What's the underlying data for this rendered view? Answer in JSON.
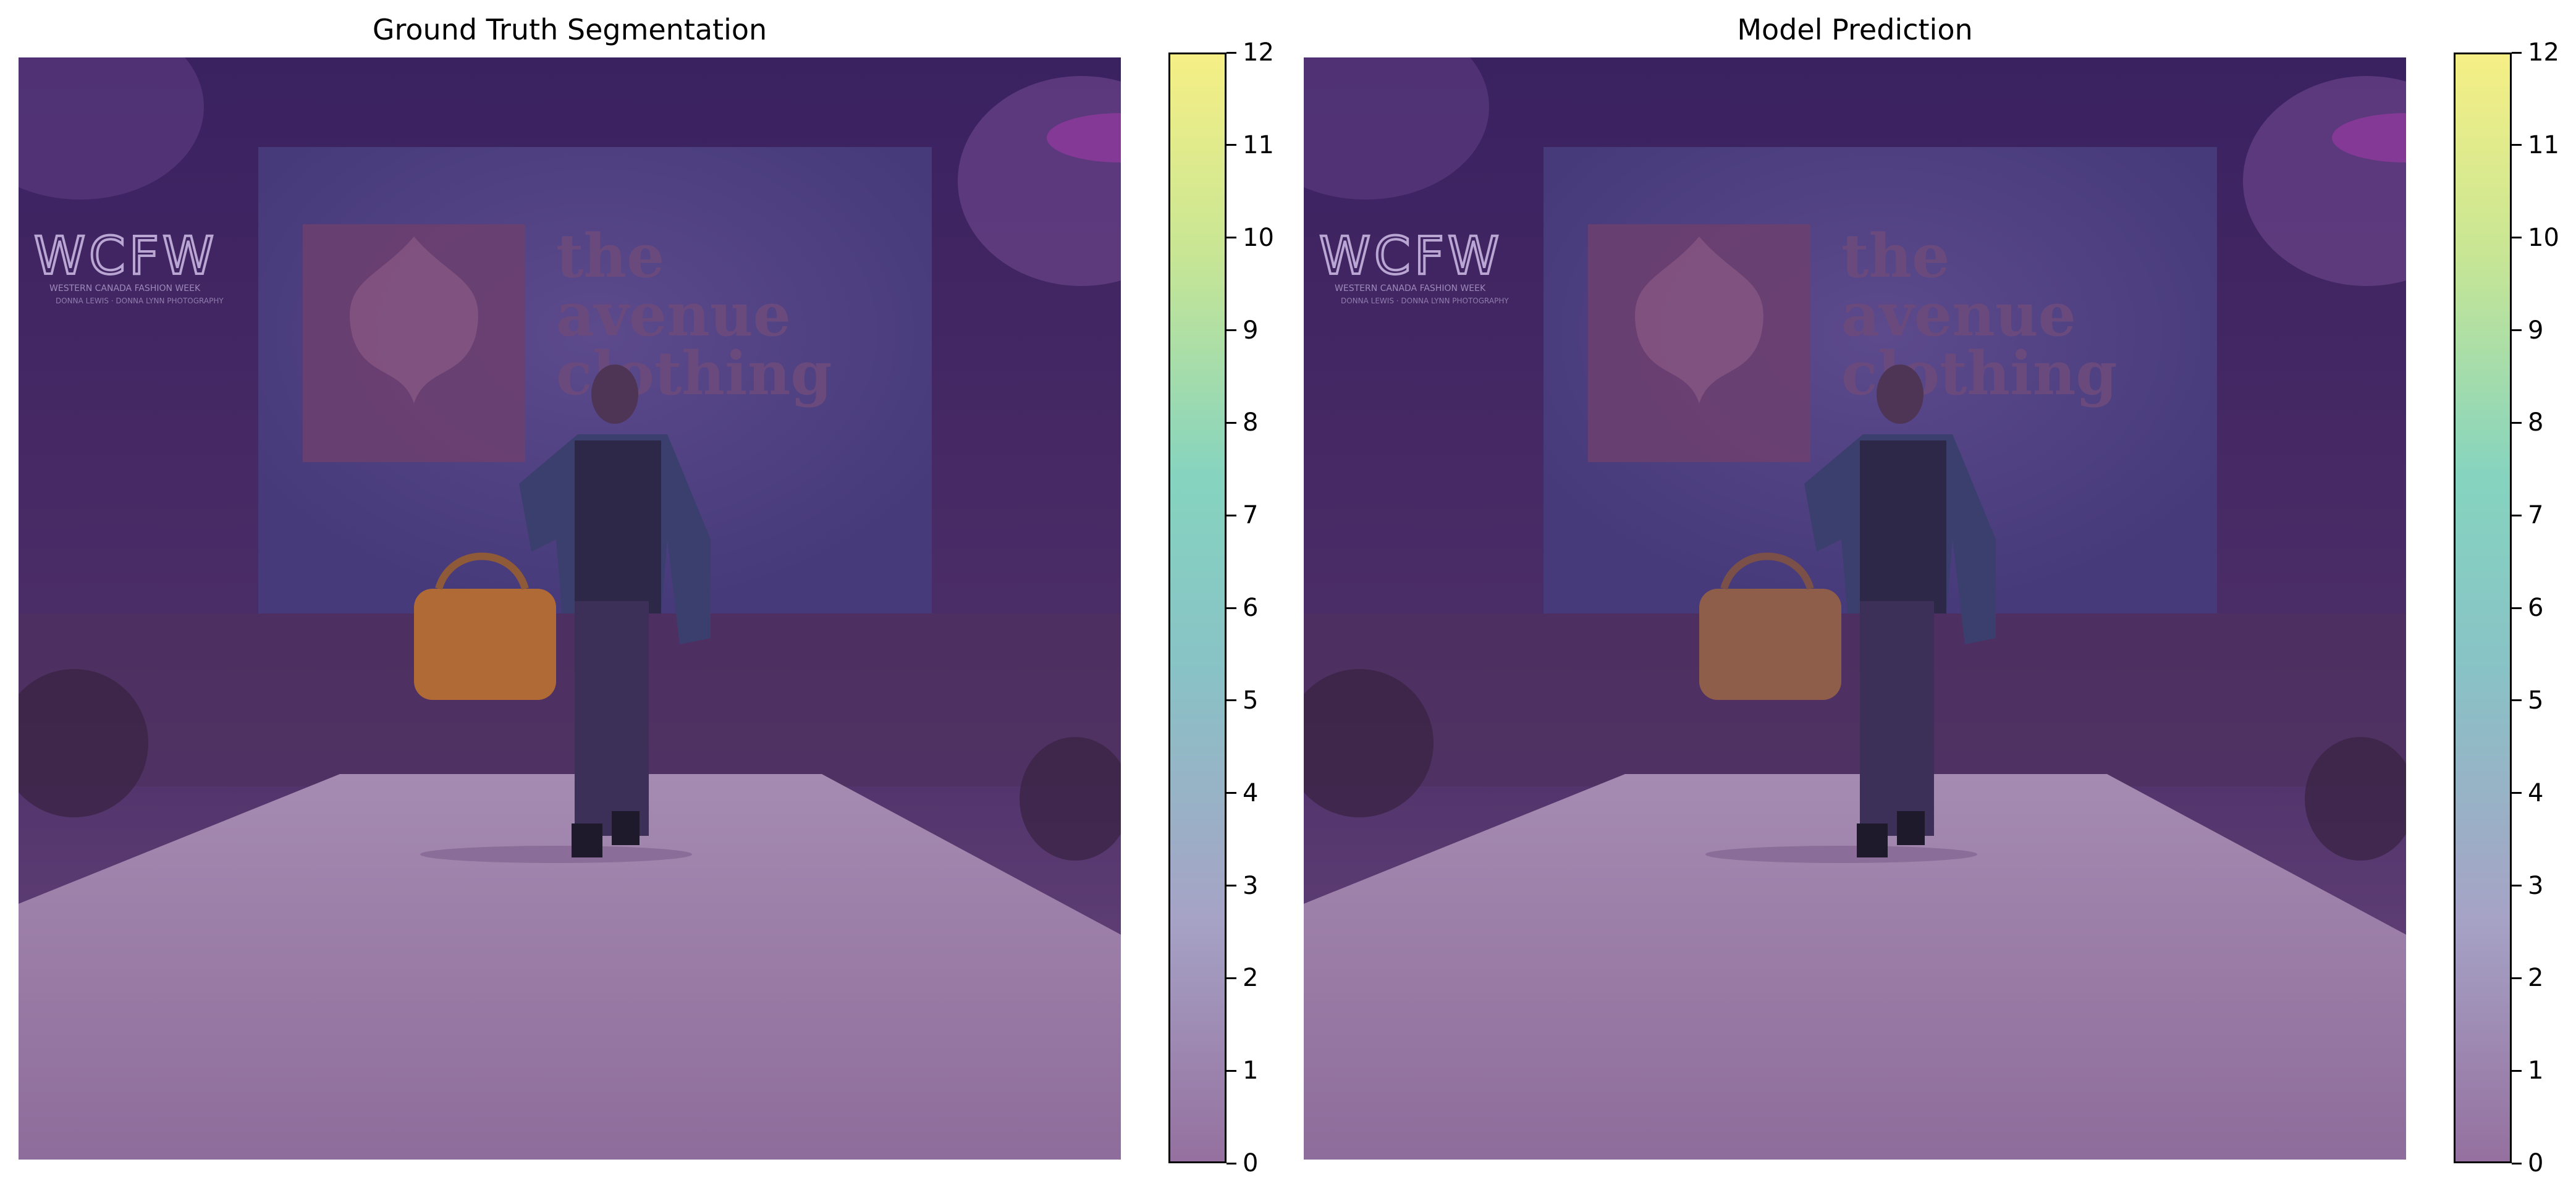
{
  "figure": {
    "panels": [
      {
        "title": "Ground Truth Segmentation",
        "overlay_color": "#5b2a73",
        "colorbar": {
          "min": 0,
          "max": 12,
          "ticks": [
            "0",
            "1",
            "2",
            "3",
            "4",
            "5",
            "6",
            "7",
            "8",
            "9",
            "10",
            "11",
            "12"
          ]
        }
      },
      {
        "title": "Model Prediction",
        "overlay_color": "#5b2a73",
        "colorbar": {
          "min": 0,
          "max": 12,
          "ticks": [
            "0",
            "1",
            "2",
            "3",
            "4",
            "5",
            "6",
            "7",
            "8",
            "9",
            "10",
            "11",
            "12"
          ]
        }
      }
    ],
    "photo_text": {
      "logo": "WCFW",
      "logo_sub1": "WESTERN CANADA FASHION WEEK",
      "logo_sub2": "DONNA LEWIS · DONNA LYNN PHOTOGRAPHY",
      "screen_line1": "the",
      "screen_line2": "avenue",
      "screen_line3": "clothing"
    },
    "colormap": [
      "#8f6fa7",
      "#a9b2d1",
      "#86c7c4",
      "#f6ee86"
    ]
  }
}
